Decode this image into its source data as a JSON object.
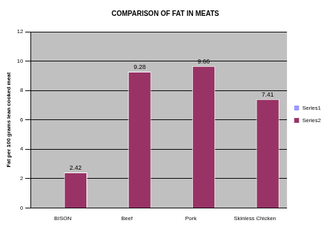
{
  "chart_data": {
    "type": "bar",
    "title": "COMPARISON OF FAT IN MEATS",
    "y_label": "Fat per 100 grams lean cooked meat",
    "categories": [
      "BISON",
      "Beef",
      "Pork",
      "Skinless Chicken"
    ],
    "series": [
      {
        "name": "Series1",
        "color": "#9999ff",
        "values": [
          null,
          null,
          null,
          null
        ]
      },
      {
        "name": "Series2",
        "color": "#993366",
        "values": [
          2.42,
          9.28,
          9.66,
          7.41
        ]
      }
    ],
    "ylim": [
      0,
      12
    ],
    "yticks": [
      0,
      2,
      4,
      6,
      8,
      10,
      12
    ],
    "grid": true,
    "legend": "right",
    "data_labels": true
  }
}
